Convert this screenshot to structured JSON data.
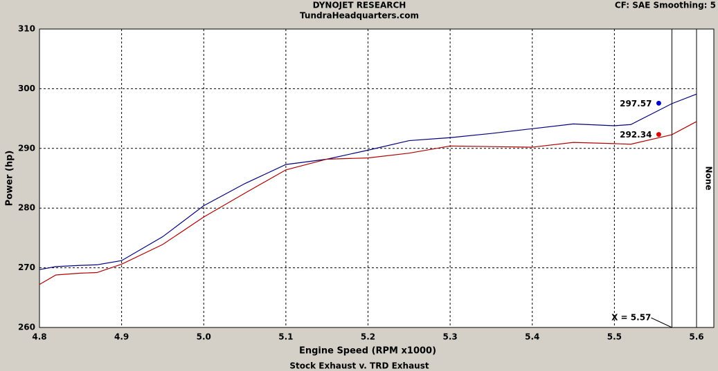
{
  "chart_data": {
    "type": "line",
    "title": "DYNOJET RESEARCH",
    "subtitle": "TundraHeadquarters.com",
    "settings_text": "CF: SAE  Smoothing: 5",
    "x_label": "Engine Speed (RPM x1000)",
    "y_label": "Power (hp)",
    "caption": "Stock Exhaust v. TRD Exhaust",
    "side_label": "None",
    "x": [
      4.8,
      4.82,
      4.85,
      4.87,
      4.9,
      4.95,
      5.0,
      5.05,
      5.1,
      5.15,
      5.2,
      5.25,
      5.3,
      5.35,
      5.4,
      5.45,
      5.5,
      5.52,
      5.57,
      5.6
    ],
    "series": [
      {
        "color": "#00007f",
        "values": [
          269.7,
          270.2,
          270.4,
          270.5,
          271.2,
          275.2,
          280.4,
          284.1,
          287.3,
          288.2,
          289.7,
          291.3,
          291.8,
          292.5,
          293.3,
          294.1,
          293.8,
          294.0,
          297.5,
          299.1
        ]
      },
      {
        "color": "#b00000",
        "values": [
          267.2,
          268.8,
          269.1,
          269.2,
          270.6,
          273.9,
          278.5,
          282.5,
          286.4,
          288.2,
          288.4,
          289.2,
          290.4,
          290.3,
          290.2,
          291.0,
          290.8,
          290.7,
          292.3,
          294.5
        ]
      }
    ],
    "readouts": [
      {
        "x": 5.554,
        "value": 297.57,
        "color": "#0000cc"
      },
      {
        "x": 5.554,
        "value": 292.34,
        "color": "#dd0000"
      }
    ],
    "cursor": {
      "value": 5.57,
      "label": "X = 5.57"
    },
    "xlim": [
      4.8,
      5.6
    ],
    "ylim": [
      260,
      310
    ],
    "xticks": [
      4.8,
      4.9,
      {
        "value": 5,
        "label": "5.0"
      },
      5.1,
      5.2,
      5.3,
      5.4,
      5.5,
      5.6
    ],
    "yticks": [
      260,
      270,
      280,
      290,
      300,
      310
    ],
    "grid": true
  }
}
